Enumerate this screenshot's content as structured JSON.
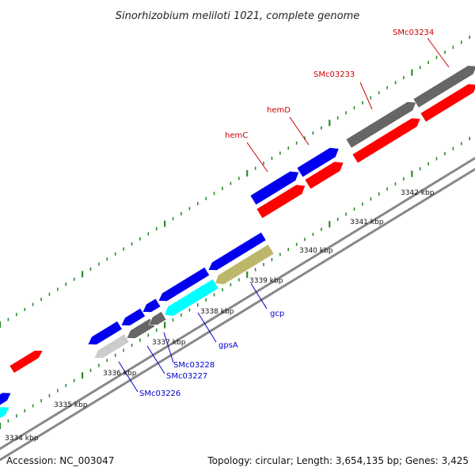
{
  "title": "Sinorhizobium meliloti 1021, complete genome",
  "footer": {
    "accession": "Accession: NC_003047",
    "topology": "Topology: circular; Length: 3,654,135 bp; Genes: 3,425"
  },
  "ticks": [
    "3334 kbp",
    "3335 kbp",
    "3336 kbp",
    "3337 kbp",
    "3338 kbp",
    "3339 kbp",
    "3340 kbp",
    "3341 kbp",
    "3342 kbp"
  ],
  "genes_labeled": [
    {
      "name": "SMc03234",
      "strand": "forward"
    },
    {
      "name": "SMc03233",
      "strand": "forward"
    },
    {
      "name": "hemD",
      "strand": "forward"
    },
    {
      "name": "hemC",
      "strand": "forward"
    },
    {
      "name": "gcp",
      "strand": "reverse"
    },
    {
      "name": "gpsA",
      "strand": "reverse"
    },
    {
      "name": "SMc03228",
      "strand": "reverse"
    },
    {
      "name": "SMc03227",
      "strand": "reverse"
    },
    {
      "name": "SMc03226",
      "strand": "reverse"
    }
  ],
  "colors": {
    "forward_label": "#cc0000",
    "reverse_label": "#0000cc",
    "tick": "#2a8a2a",
    "backbone": "#888888",
    "red": "#ff0000",
    "blue": "#0000ee",
    "cyan": "#00ffff",
    "olive": "#bdb76b",
    "gray": "#666666",
    "light_gray": "#cccccc"
  }
}
